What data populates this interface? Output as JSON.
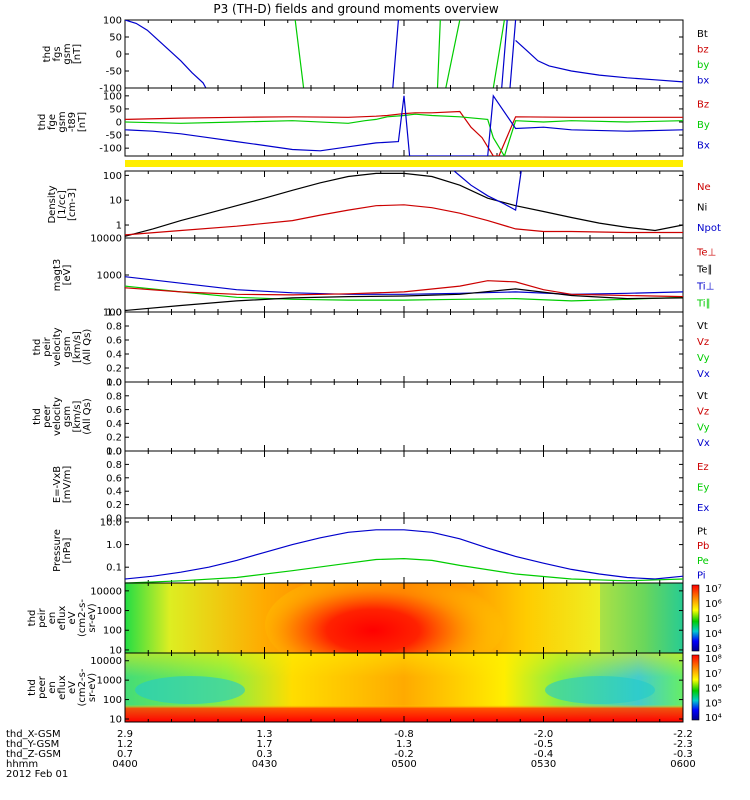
{
  "title": "P3 (TH-D) fields and ground moments overview",
  "date_label": "2012 Feb 01",
  "time_ticks": [
    "0400",
    "0430",
    "0500",
    "0530",
    "0600"
  ],
  "time_row_label": "hhmm",
  "position_rows": [
    {
      "label": "thd_X-GSM",
      "values": [
        "2.9",
        "1.3",
        "-0.8",
        "-2.0",
        "-2.2"
      ]
    },
    {
      "label": "thd_Y-GSM",
      "values": [
        "1.2",
        "1.7",
        "1.3",
        "-0.5",
        "-2.3"
      ]
    },
    {
      "label": "thd_Z-GSM",
      "values": [
        "0.7",
        "0.3",
        "-0.2",
        "-0.4",
        "-0.3"
      ]
    }
  ],
  "colors": {
    "black": "#000000",
    "red": "#cc0000",
    "green": "#00cc00",
    "blue": "#0000cc",
    "yellow": "#ffee00"
  },
  "chart_data": [
    {
      "id": "fgs",
      "type": "line",
      "ylabel_lines": [
        "thd",
        "fgs",
        "gsm",
        "[nT]"
      ],
      "ylim": [
        -100,
        100
      ],
      "scale": "linear",
      "yticks": [
        {
          "v": 100,
          "t": "100"
        },
        {
          "v": 50,
          "t": "50"
        },
        {
          "v": 0,
          "t": "0"
        },
        {
          "v": -50,
          "t": "-50"
        },
        {
          "v": -100,
          "t": "-100"
        }
      ],
      "legend": [
        {
          "t": "Bt",
          "c": "black"
        },
        {
          "t": "bz",
          "c": "red"
        },
        {
          "t": "by",
          "c": "green"
        },
        {
          "t": "bx",
          "c": "blue"
        }
      ],
      "series": [
        {
          "name": "bx",
          "color": "blue",
          "x": [
            0,
            0.02,
            0.04,
            0.06,
            0.08,
            0.1,
            0.12,
            0.14,
            0.145,
            null,
            0.7,
            0.72,
            0.74,
            0.76,
            0.8,
            0.85,
            0.9,
            0.95,
            1
          ],
          "y": [
            100,
            90,
            70,
            40,
            10,
            -20,
            -55,
            -85,
            -100,
            null,
            40,
            10,
            -20,
            -35,
            -50,
            -62,
            -70,
            -76,
            -82
          ]
        },
        {
          "name": "by",
          "color": "green",
          "x": [
            0.305,
            0.32,
            null,
            0.565,
            0.56,
            null,
            0.575,
            0.6,
            null,
            0.68,
            0.66
          ],
          "y": [
            100,
            -100,
            null,
            100,
            -100,
            null,
            -100,
            100,
            null,
            100,
            -100
          ]
        },
        {
          "name": "bx_spikes",
          "color": "blue",
          "x": [
            0.49,
            0.48,
            null,
            0.685,
            0.675,
            null,
            0.69,
            0.7
          ],
          "y": [
            100,
            -100,
            null,
            100,
            -100,
            null,
            -100,
            100
          ]
        }
      ]
    },
    {
      "id": "fge",
      "type": "line",
      "ylabel_lines": [
        "thd",
        "fge",
        "gsm",
        "-t89",
        "[nT]"
      ],
      "ylim": [
        -130,
        130
      ],
      "scale": "linear",
      "yticks": [
        {
          "v": 100,
          "t": "100"
        },
        {
          "v": 50,
          "t": "50"
        },
        {
          "v": 0,
          "t": "0"
        },
        {
          "v": -50,
          "t": "-50"
        },
        {
          "v": -100,
          "t": "-100"
        }
      ],
      "legend": [
        {
          "t": "Bz",
          "c": "red"
        },
        {
          "t": "By",
          "c": "green"
        },
        {
          "t": "Bx",
          "c": "blue"
        }
      ],
      "series": [
        {
          "name": "Bz",
          "color": "red",
          "x": [
            0,
            0.1,
            0.2,
            0.3,
            0.4,
            0.45,
            0.47,
            0.49,
            0.5,
            0.52,
            0.55,
            0.6,
            0.62,
            0.64,
            0.66,
            0.67,
            0.7,
            0.8,
            0.9,
            1
          ],
          "y": [
            10,
            15,
            18,
            20,
            18,
            22,
            25,
            30,
            32,
            35,
            35,
            40,
            -20,
            -60,
            -130,
            -130,
            20,
            18,
            18,
            18
          ]
        },
        {
          "name": "By",
          "color": "green",
          "x": [
            0,
            0.1,
            0.2,
            0.3,
            0.4,
            0.43,
            0.45,
            0.47,
            0.5,
            0.52,
            0.55,
            0.6,
            0.65,
            0.66,
            0.68,
            0.7,
            0.75,
            0.8,
            0.9,
            1
          ],
          "y": [
            0,
            -5,
            0,
            5,
            -5,
            5,
            10,
            20,
            25,
            30,
            25,
            20,
            10,
            -60,
            -130,
            5,
            0,
            5,
            0,
            5
          ]
        },
        {
          "name": "Bx",
          "color": "blue",
          "x": [
            0,
            0.05,
            0.1,
            0.15,
            0.2,
            0.25,
            0.3,
            0.35,
            0.4,
            0.45,
            0.49,
            0.5,
            0.51,
            0.55,
            0.6,
            0.65,
            0.66,
            0.7,
            0.75,
            0.8,
            0.9,
            1
          ],
          "y": [
            -30,
            -35,
            -45,
            -60,
            -75,
            -90,
            -105,
            -110,
            -95,
            -80,
            -75,
            100,
            -130,
            -130,
            -130,
            -130,
            100,
            -25,
            -20,
            -30,
            -35,
            -30
          ]
        }
      ]
    },
    {
      "id": "density",
      "type": "line",
      "ylabel_lines": [
        "Density",
        "[1/cc]",
        "[cm-3]"
      ],
      "ylim": [
        0.3,
        150
      ],
      "scale": "log",
      "yticks": [
        {
          "v": 100,
          "t": "100"
        },
        {
          "v": 10,
          "t": "10"
        },
        {
          "v": 1,
          "t": "1"
        }
      ],
      "legend": [
        {
          "t": "Ne",
          "c": "red"
        },
        {
          "t": "Ni",
          "c": "black"
        },
        {
          "t": "Npot",
          "c": "blue"
        }
      ],
      "series": [
        {
          "name": "Ni",
          "color": "black",
          "x": [
            0,
            0.05,
            0.1,
            0.15,
            0.2,
            0.25,
            0.3,
            0.35,
            0.4,
            0.45,
            0.5,
            0.55,
            0.6,
            0.65,
            0.7,
            0.75,
            0.8,
            0.85,
            0.9,
            0.95,
            1
          ],
          "y": [
            0.35,
            0.7,
            1.5,
            3,
            6,
            12,
            25,
            50,
            90,
            120,
            120,
            90,
            40,
            12,
            6,
            3.5,
            2,
            1.2,
            0.8,
            0.6,
            1
          ]
        },
        {
          "name": "Ne",
          "color": "red",
          "x": [
            0,
            0.1,
            0.2,
            0.3,
            0.35,
            0.4,
            0.45,
            0.5,
            0.55,
            0.6,
            0.65,
            0.7,
            0.75,
            0.8,
            0.9,
            1
          ],
          "y": [
            0.4,
            0.6,
            0.9,
            1.5,
            2.5,
            4,
            6,
            6.5,
            5,
            3,
            1.5,
            0.7,
            0.55,
            0.55,
            0.5,
            0.5
          ]
        },
        {
          "name": "Npot",
          "color": "blue",
          "x": [
            0.59,
            0.62,
            0.65,
            0.68,
            0.7,
            0.71
          ],
          "y": [
            150,
            40,
            15,
            7,
            4,
            150
          ]
        }
      ]
    },
    {
      "id": "temp",
      "type": "line",
      "ylabel_lines": [
        "magt3",
        "[eV]"
      ],
      "ylim": [
        100,
        10000
      ],
      "scale": "log",
      "yticks": [
        {
          "v": 10000,
          "t": "10000"
        },
        {
          "v": 1000,
          "t": "1000"
        },
        {
          "v": 100,
          "t": "100"
        }
      ],
      "legend": [
        {
          "t": "Te⊥",
          "c": "red"
        },
        {
          "t": "Te∥",
          "c": "black"
        },
        {
          "t": "Ti⊥",
          "c": "blue"
        },
        {
          "t": "Ti∥",
          "c": "green"
        }
      ],
      "series": [
        {
          "name": "Ti⊥",
          "color": "blue",
          "x": [
            0,
            0.1,
            0.2,
            0.3,
            0.4,
            0.5,
            0.6,
            0.7,
            0.8,
            0.9,
            1
          ],
          "y": [
            900,
            600,
            400,
            330,
            300,
            300,
            320,
            350,
            300,
            320,
            350
          ]
        },
        {
          "name": "Ti∥",
          "color": "green",
          "x": [
            0,
            0.1,
            0.2,
            0.3,
            0.4,
            0.5,
            0.6,
            0.7,
            0.8,
            0.9,
            1
          ],
          "y": [
            500,
            350,
            250,
            220,
            210,
            210,
            220,
            230,
            200,
            220,
            250
          ]
        },
        {
          "name": "Te⊥",
          "color": "red",
          "x": [
            0,
            0.1,
            0.2,
            0.3,
            0.4,
            0.5,
            0.6,
            0.65,
            0.7,
            0.75,
            0.8,
            0.9,
            1
          ],
          "y": [
            450,
            350,
            300,
            290,
            310,
            350,
            500,
            700,
            650,
            400,
            300,
            280,
            260
          ]
        },
        {
          "name": "Te∥",
          "color": "black",
          "x": [
            0,
            0.1,
            0.2,
            0.3,
            0.4,
            0.5,
            0.6,
            0.7,
            0.8,
            0.9,
            1
          ],
          "y": [
            110,
            150,
            200,
            240,
            260,
            270,
            300,
            420,
            280,
            230,
            240
          ]
        }
      ]
    },
    {
      "id": "peir_vel",
      "type": "line",
      "ylabel_lines": [
        "thd",
        "peir",
        "velocity",
        "gsm",
        "[km/s]",
        "(All Qs)"
      ],
      "ylim": [
        0,
        1
      ],
      "scale": "linear",
      "yticks": [
        {
          "v": 1,
          "t": "1.0"
        },
        {
          "v": 0.8,
          "t": "0.8"
        },
        {
          "v": 0.6,
          "t": "0.6"
        },
        {
          "v": 0.4,
          "t": "0.4"
        },
        {
          "v": 0.2,
          "t": "0.2"
        },
        {
          "v": 0,
          "t": "0.0"
        }
      ],
      "legend": [
        {
          "t": "Vt",
          "c": "black"
        },
        {
          "t": "Vz",
          "c": "red"
        },
        {
          "t": "Vy",
          "c": "green"
        },
        {
          "t": "Vx",
          "c": "blue"
        }
      ],
      "series": []
    },
    {
      "id": "peer_vel",
      "type": "line",
      "ylabel_lines": [
        "thd",
        "peer",
        "velocity",
        "gsm",
        "[km/s]",
        "(All Qs)"
      ],
      "ylim": [
        0,
        1
      ],
      "scale": "linear",
      "yticks": [
        {
          "v": 1,
          "t": "1.0"
        },
        {
          "v": 0.8,
          "t": "0.8"
        },
        {
          "v": 0.6,
          "t": "0.6"
        },
        {
          "v": 0.4,
          "t": "0.4"
        },
        {
          "v": 0.2,
          "t": "0.2"
        },
        {
          "v": 0,
          "t": "0.0"
        }
      ],
      "legend": [
        {
          "t": "Vt",
          "c": "black"
        },
        {
          "t": "Vz",
          "c": "red"
        },
        {
          "t": "Vy",
          "c": "green"
        },
        {
          "t": "Vx",
          "c": "blue"
        }
      ],
      "series": []
    },
    {
      "id": "efield",
      "type": "line",
      "ylabel_lines": [
        "E=-VxB",
        "[mV/m]"
      ],
      "ylim": [
        0,
        1
      ],
      "scale": "linear",
      "yticks": [
        {
          "v": 1,
          "t": "1.0"
        },
        {
          "v": 0.8,
          "t": "0.8"
        },
        {
          "v": 0.6,
          "t": "0.6"
        },
        {
          "v": 0.4,
          "t": "0.4"
        },
        {
          "v": 0.2,
          "t": "0.2"
        },
        {
          "v": 0,
          "t": "0.0"
        }
      ],
      "legend": [
        {
          "t": "Ez",
          "c": "red"
        },
        {
          "t": "Ey",
          "c": "green"
        },
        {
          "t": "Ex",
          "c": "blue"
        }
      ],
      "series": []
    },
    {
      "id": "pressure",
      "type": "line",
      "ylabel_lines": [
        "Pressure",
        "[nPa]"
      ],
      "ylim": [
        0.02,
        15
      ],
      "scale": "log",
      "yticks": [
        {
          "v": 10,
          "t": "10.0"
        },
        {
          "v": 1,
          "t": "1.0"
        },
        {
          "v": 0.1,
          "t": "0.1"
        }
      ],
      "legend": [
        {
          "t": "Pt",
          "c": "black"
        },
        {
          "t": "Pb",
          "c": "red"
        },
        {
          "t": "Pe",
          "c": "green"
        },
        {
          "t": "Pi",
          "c": "blue"
        }
      ],
      "series": [
        {
          "name": "Pi",
          "color": "blue",
          "x": [
            0,
            0.05,
            0.1,
            0.15,
            0.2,
            0.25,
            0.3,
            0.35,
            0.4,
            0.45,
            0.5,
            0.55,
            0.6,
            0.65,
            0.7,
            0.75,
            0.8,
            0.85,
            0.9,
            0.95,
            1
          ],
          "y": [
            0.03,
            0.04,
            0.06,
            0.1,
            0.2,
            0.45,
            1,
            2,
            3.5,
            4.5,
            4.5,
            3.5,
            1.8,
            0.7,
            0.3,
            0.15,
            0.08,
            0.05,
            0.035,
            0.03,
            0.04
          ]
        },
        {
          "name": "Pe",
          "color": "green",
          "x": [
            0,
            0.1,
            0.2,
            0.3,
            0.4,
            0.45,
            0.5,
            0.55,
            0.6,
            0.7,
            0.8,
            0.9,
            1
          ],
          "y": [
            0.02,
            0.025,
            0.035,
            0.07,
            0.15,
            0.22,
            0.24,
            0.2,
            0.12,
            0.05,
            0.03,
            0.025,
            0.03
          ]
        }
      ]
    },
    {
      "id": "peir_eflux",
      "type": "heatmap",
      "ylabel_lines": [
        "thd",
        "peir",
        "en",
        "eflux",
        "eV",
        "(cm2-s-",
        "sr-eV)"
      ],
      "ylim": [
        7,
        25000
      ],
      "scale": "log",
      "yticks": [
        {
          "v": 10000,
          "t": "10000"
        },
        {
          "v": 1000,
          "t": "1000"
        },
        {
          "v": 100,
          "t": "100"
        },
        {
          "v": 10,
          "t": "10"
        }
      ],
      "colorbar": {
        "min_exp": 3,
        "max_exp": 7,
        "labels": [
          "10⁷",
          "10⁶",
          "10⁵",
          "10⁴",
          "10³"
        ]
      }
    },
    {
      "id": "peer_eflux",
      "type": "heatmap",
      "ylabel_lines": [
        "thd",
        "peer",
        "en",
        "eflux",
        "eV",
        "(cm2-s-",
        "sr-eV)"
      ],
      "ylim": [
        7,
        25000
      ],
      "scale": "log",
      "yticks": [
        {
          "v": 10000,
          "t": "10000"
        },
        {
          "v": 1000,
          "t": "1000"
        },
        {
          "v": 100,
          "t": "100"
        },
        {
          "v": 10,
          "t": "10"
        }
      ],
      "colorbar": {
        "min_exp": 4,
        "max_exp": 8,
        "labels": [
          "10⁸",
          "10⁷",
          "10⁶",
          "10⁵",
          "10⁴"
        ]
      }
    }
  ]
}
